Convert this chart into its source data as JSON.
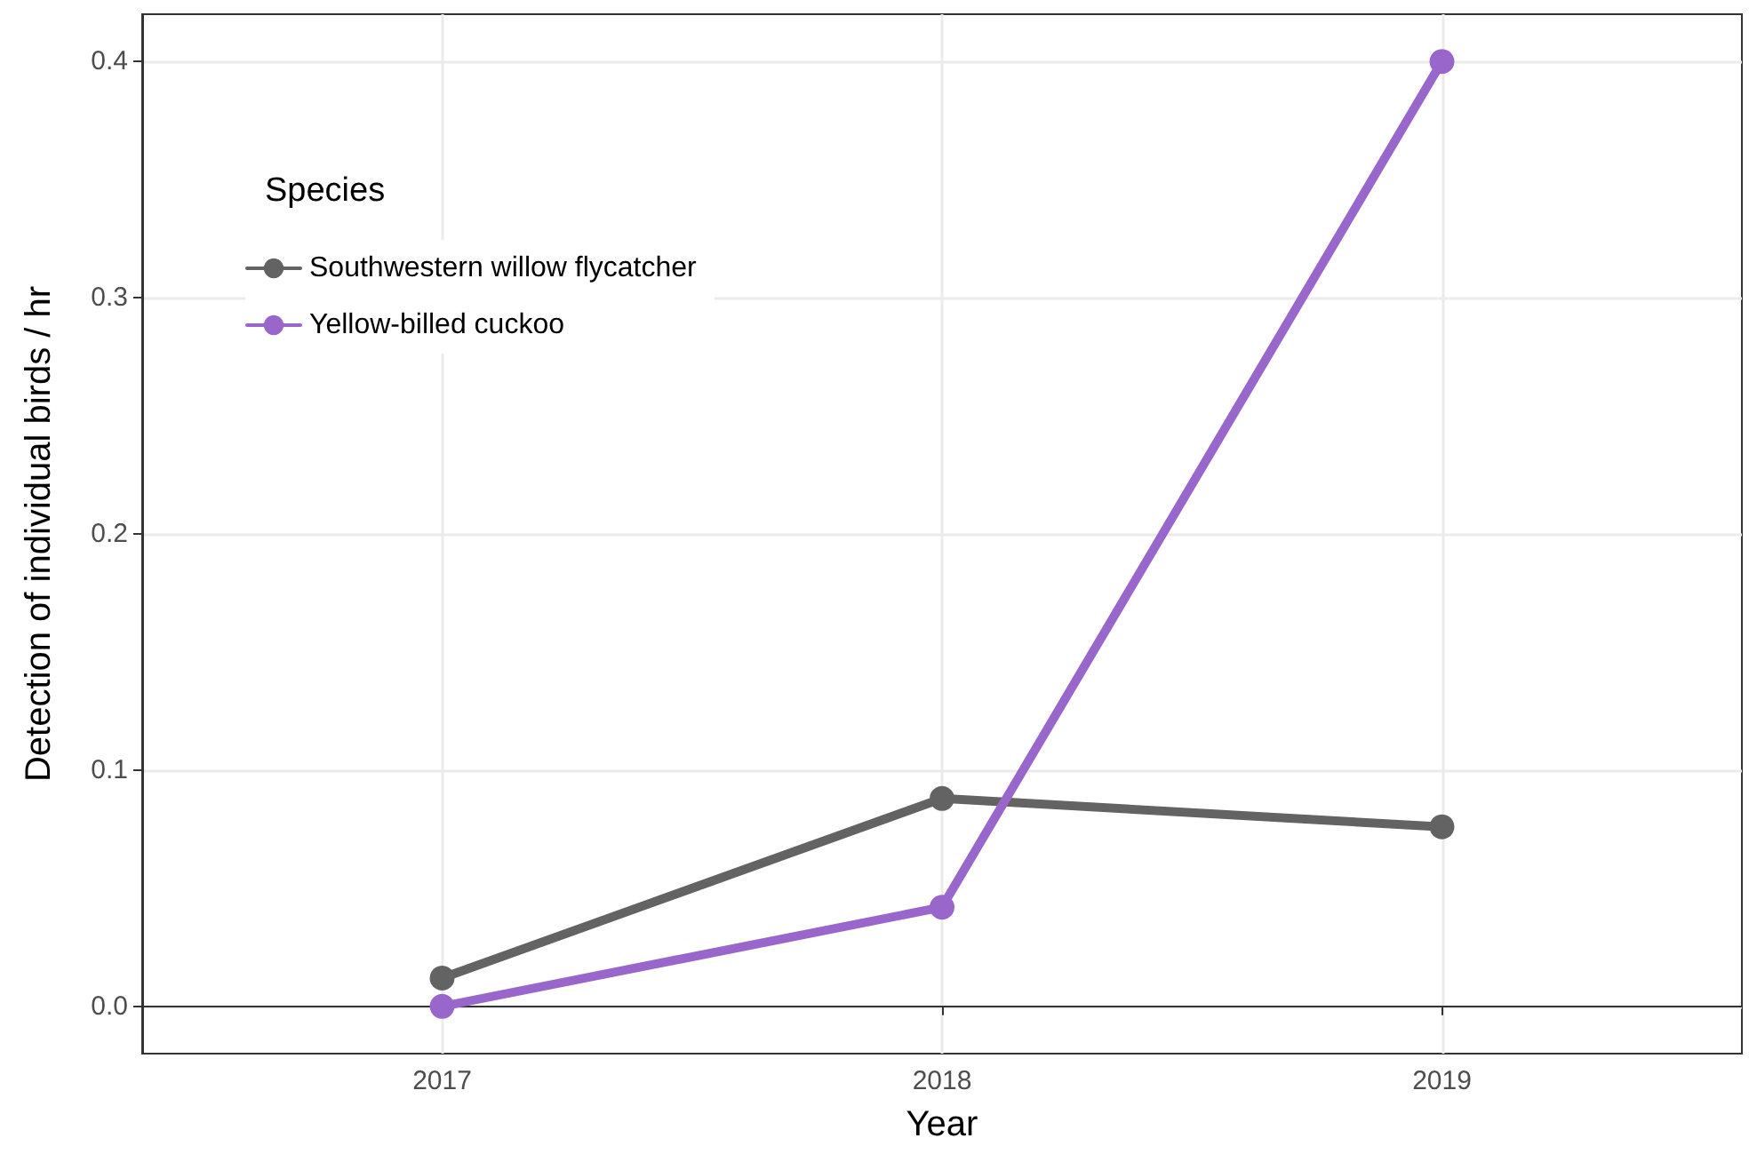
{
  "chart_data": {
    "type": "line",
    "xlabel": "Year",
    "ylabel": "Detection of individual birds / hr",
    "legend_title": "Species",
    "x": [
      2017,
      2018,
      2019
    ],
    "series": [
      {
        "name": "Southwestern willow flycatcher",
        "color": "#636363",
        "values": [
          0.012,
          0.088,
          0.076
        ]
      },
      {
        "name": "Yellow-billed cuckoo",
        "color": "#9966cc",
        "values": [
          0.0,
          0.042,
          0.4
        ]
      }
    ],
    "xlim": [
      2016.4,
      2019.6
    ],
    "xticks": [
      2017,
      2018,
      2019
    ],
    "ylim": [
      -0.02,
      0.42
    ],
    "yticks": [
      {
        "value": 0,
        "label": "0.0"
      },
      {
        "value": 0.1,
        "label": "0.1"
      },
      {
        "value": 0.2,
        "label": "0.2"
      },
      {
        "value": 0.3,
        "label": "0.3"
      },
      {
        "value": 0.4,
        "label": "0.4"
      }
    ],
    "grid": true,
    "legend": "top left",
    "marker": "circle",
    "line_style": "solid"
  }
}
